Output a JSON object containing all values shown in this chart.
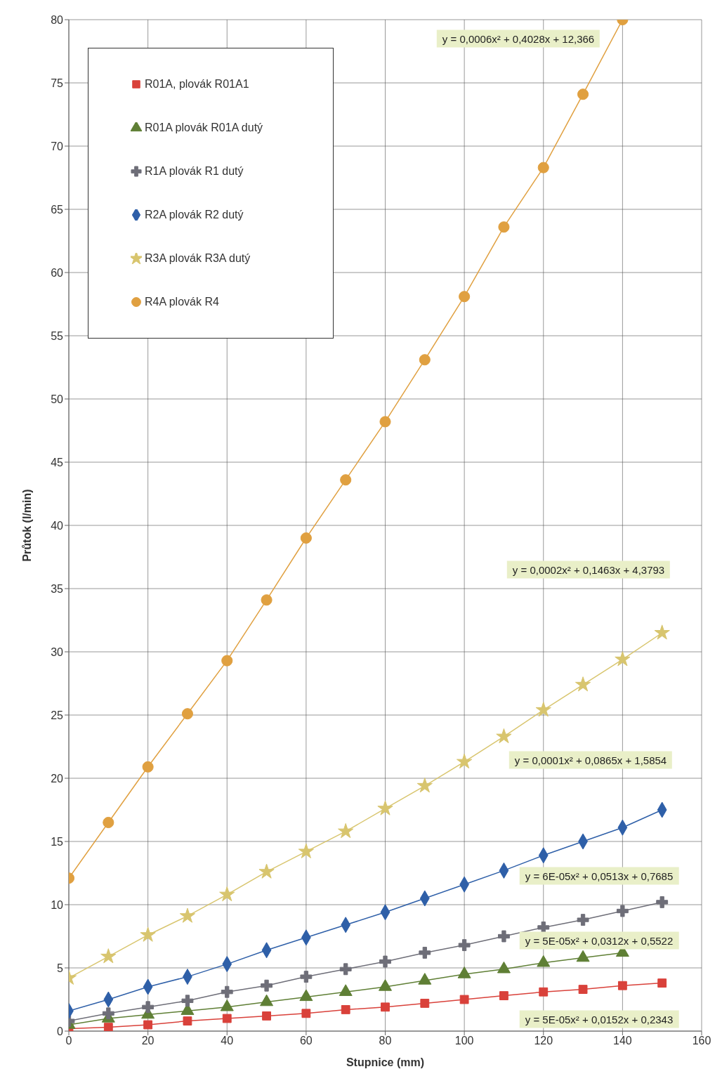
{
  "chart_data": {
    "type": "line",
    "xlabel": "Stupnice (mm)",
    "ylabel": "Průtok (l/min)",
    "x": [
      0,
      10,
      20,
      30,
      40,
      50,
      60,
      70,
      80,
      90,
      100,
      110,
      120,
      130,
      140,
      150
    ],
    "xlim": [
      0,
      160
    ],
    "xticks": [
      0,
      20,
      40,
      60,
      80,
      100,
      120,
      140,
      160
    ],
    "ylim": [
      0,
      80
    ],
    "yticks": [
      0,
      5,
      10,
      15,
      20,
      25,
      30,
      35,
      40,
      45,
      50,
      55,
      60,
      65,
      70,
      75,
      80
    ],
    "grid": true,
    "legend": "top left",
    "series": [
      {
        "name": "R01A, plovák R01A1",
        "color": "#d9413a",
        "marker": "square",
        "values": [
          0.2,
          0.3,
          0.5,
          0.8,
          1.0,
          1.2,
          1.4,
          1.7,
          1.9,
          2.2,
          2.5,
          2.8,
          3.1,
          3.3,
          3.6,
          3.8
        ]
      },
      {
        "name": "R01A plovák R01A dutý",
        "color": "#5f7f35",
        "marker": "triangle",
        "values": [
          0.5,
          1.0,
          1.3,
          1.6,
          1.9,
          2.3,
          2.7,
          3.1,
          3.5,
          4.0,
          4.5,
          4.9,
          5.4,
          5.8,
          6.2,
          null
        ]
      },
      {
        "name": "R1A plovák R1 dutý",
        "color": "#6e6e78",
        "marker": "cross",
        "values": [
          0.8,
          1.4,
          1.9,
          2.4,
          3.1,
          3.6,
          4.3,
          4.9,
          5.5,
          6.2,
          6.8,
          7.5,
          8.2,
          8.8,
          9.5,
          10.2
        ]
      },
      {
        "name": "R2A plovák R2 dutý",
        "color": "#2e5fa8",
        "marker": "diamond",
        "values": [
          1.6,
          2.5,
          3.5,
          4.3,
          5.3,
          6.4,
          7.4,
          8.4,
          9.4,
          10.5,
          11.6,
          12.7,
          13.9,
          15.0,
          16.1,
          17.5
        ]
      },
      {
        "name": "R3A plovák R3A dutý",
        "color": "#d8c56e",
        "marker": "star",
        "values": [
          4.2,
          5.9,
          7.6,
          9.1,
          10.8,
          12.6,
          14.2,
          15.8,
          17.6,
          19.4,
          21.3,
          23.3,
          25.4,
          27.4,
          29.4,
          31.5
        ]
      },
      {
        "name": "R4A plovák R4",
        "color": "#e0a040",
        "marker": "circle",
        "values": [
          12.1,
          16.5,
          20.9,
          25.1,
          29.3,
          34.1,
          39.0,
          43.6,
          48.2,
          53.1,
          58.1,
          63.6,
          68.3,
          74.1,
          80.0,
          null
        ]
      }
    ],
    "annotations": [
      "y = 0,0006x² + 0,4028x + 12,366",
      "y = 0,0002x² + 0,1463x + 4,3793",
      "y = 0,0001x² + 0,0865x + 1,5854",
      "y = 6E-05x² + 0,0513x + 0,7685",
      "y = 5E-05x² + 0,0312x + 0,5522",
      "y = 5E-05x² + 0,0152x + 0,2343"
    ]
  }
}
